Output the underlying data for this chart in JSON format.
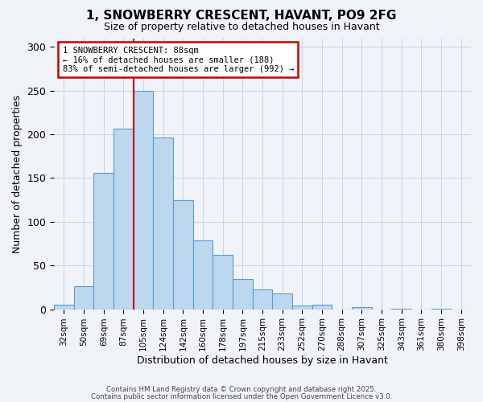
{
  "title": "1, SNOWBERRY CRESCENT, HAVANT, PO9 2FG",
  "subtitle": "Size of property relative to detached houses in Havant",
  "xlabel": "Distribution of detached houses by size in Havant",
  "ylabel": "Number of detached properties",
  "bin_labels": [
    "32sqm",
    "50sqm",
    "69sqm",
    "87sqm",
    "105sqm",
    "124sqm",
    "142sqm",
    "160sqm",
    "178sqm",
    "197sqm",
    "215sqm",
    "233sqm",
    "252sqm",
    "270sqm",
    "288sqm",
    "307sqm",
    "325sqm",
    "343sqm",
    "361sqm",
    "380sqm",
    "398sqm"
  ],
  "bar_values": [
    5,
    26,
    156,
    207,
    250,
    196,
    125,
    79,
    62,
    35,
    23,
    18,
    4,
    5,
    0,
    2,
    0,
    1,
    0,
    1,
    0
  ],
  "bar_color": "#bdd7ee",
  "bar_edge_color": "#5b9bd5",
  "ylim": [
    0,
    310
  ],
  "yticks": [
    0,
    50,
    100,
    150,
    200,
    250,
    300
  ],
  "vline_x_idx": 3,
  "annotation_title": "1 SNOWBERRY CRESCENT: 88sqm",
  "annotation_line1": "← 16% of detached houses are smaller (188)",
  "annotation_line2": "83% of semi-detached houses are larger (992) →",
  "annotation_box_color": "#ffffff",
  "annotation_box_edge": "#cc0000",
  "vline_color": "#cc0000",
  "footer1": "Contains HM Land Registry data © Crown copyright and database right 2025.",
  "footer2": "Contains public sector information licensed under the Open Government Licence v3.0.",
  "background_color": "#f0f4f8",
  "grid_color": "#c8d8e8"
}
